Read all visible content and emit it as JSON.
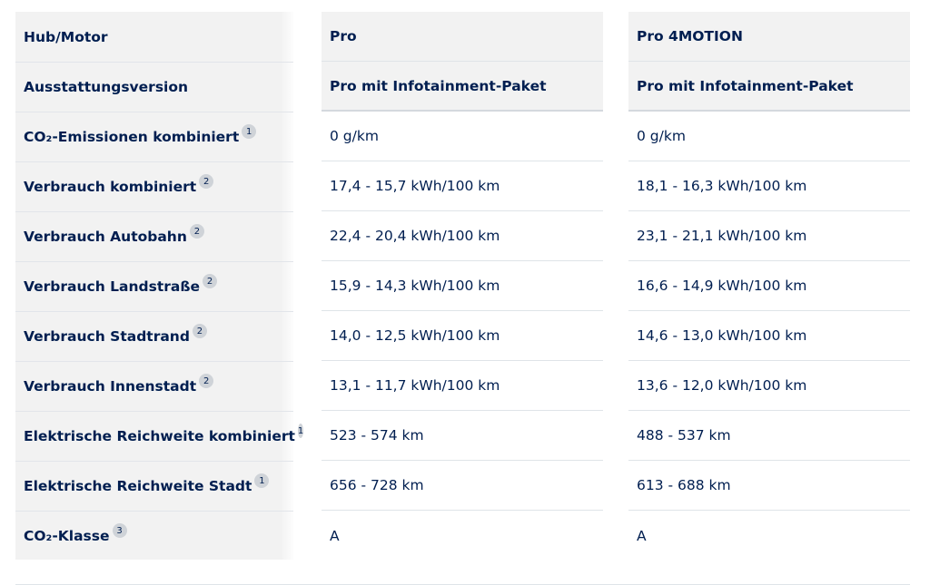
{
  "rows": [
    {
      "label": "Hub/Motor",
      "fn": "",
      "pro": "Pro",
      "pro4": "Pro 4MOTION"
    },
    {
      "label": "Ausstattungsversion",
      "fn": "",
      "pro": "Pro mit Infotainment-Paket",
      "pro4": "Pro mit Infotainment-Paket"
    },
    {
      "label": "CO₂-Emissionen kombiniert",
      "fn": "1",
      "pro": "0 g/km",
      "pro4": "0 g/km"
    },
    {
      "label": "Verbrauch kombiniert",
      "fn": "2",
      "pro": "17,4 - 15,7 kWh/100 km",
      "pro4": "18,1 - 16,3 kWh/100 km"
    },
    {
      "label": "Verbrauch Autobahn",
      "fn": "2",
      "pro": "22,4 - 20,4 kWh/100 km",
      "pro4": "23,1 - 21,1 kWh/100 km"
    },
    {
      "label": "Verbrauch Landstraße",
      "fn": "2",
      "pro": "15,9 - 14,3 kWh/100 km",
      "pro4": "16,6 - 14,9 kWh/100 km"
    },
    {
      "label": "Verbrauch Stadtrand",
      "fn": "2",
      "pro": "14,0 - 12,5 kWh/100 km",
      "pro4": "14,6 - 13,0 kWh/100 km"
    },
    {
      "label": "Verbrauch Innenstadt",
      "fn": "2",
      "pro": "13,1 - 11,7 kWh/100 km",
      "pro4": "13,6 - 12,0 kWh/100 km"
    },
    {
      "label": "Elektrische Reichweite kombiniert",
      "fn": "1",
      "pro": "523 - 574 km",
      "pro4": "488 - 537 km"
    },
    {
      "label": "Elektrische Reichweite Stadt",
      "fn": "1",
      "pro": "656 - 728 km",
      "pro4": "613 - 688 km"
    },
    {
      "label": "CO₂-Klasse",
      "fn": "3",
      "pro": "A",
      "pro4": "A"
    }
  ],
  "colors": {
    "text": "#001e50",
    "header_bg": "#f2f2f2",
    "footnote_bg": "#cfd3d8",
    "divider": "#dfe4e8"
  }
}
